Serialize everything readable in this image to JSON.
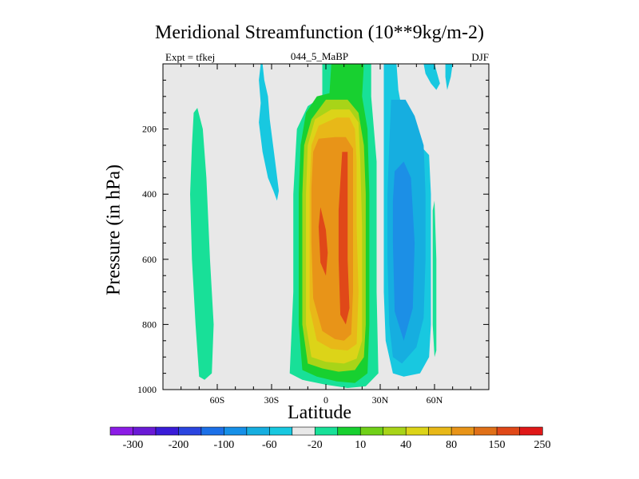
{
  "title": "Meridional Streamfunction (10**9kg/m-2)",
  "subtitle_left": "Expt = tfkej",
  "subtitle_center": "044_5_MaBP",
  "subtitle_right": "DJF",
  "chart_data": {
    "type": "contour",
    "title": "Meridional Streamfunction (10**9kg/m-2)",
    "xlabel": "Latitude",
    "ylabel": "Pressure (in hPa)",
    "x_ticks": [
      {
        "value": -60,
        "label": "60S"
      },
      {
        "value": -30,
        "label": "30S"
      },
      {
        "value": 0,
        "label": "0"
      },
      {
        "value": 30,
        "label": "30N"
      },
      {
        "value": 60,
        "label": "60N"
      }
    ],
    "xlim": [
      -90,
      90
    ],
    "y_ticks": [
      {
        "value": 200,
        "label": "200"
      },
      {
        "value": 400,
        "label": "400"
      },
      {
        "value": 600,
        "label": "600"
      },
      {
        "value": 800,
        "label": "800"
      },
      {
        "value": 1000,
        "label": "1000"
      }
    ],
    "ylim": [
      0,
      1000
    ],
    "y_inverted": true,
    "background_color": "#e8e8e8",
    "colorbar": {
      "labels": [
        "-300",
        "-200",
        "-100",
        "-60",
        "-20",
        "10",
        "40",
        "80",
        "150",
        "250"
      ],
      "colors": [
        "#8c1ce6",
        "#6a1ad6",
        "#3a1cd8",
        "#2a45e0",
        "#1c70e8",
        "#1690e8",
        "#16aee0",
        "#18c8e0",
        "#e8e8e8",
        "#18e098",
        "#18d030",
        "#70d018",
        "#a8d418",
        "#dcd418",
        "#e8b818",
        "#e89418",
        "#e07018",
        "#e04818",
        "#e01818"
      ]
    },
    "regions": [
      {
        "name": "south-positive-cell",
        "level": 10,
        "points": [
          [
            -71,
            135
          ],
          [
            -68,
            200
          ],
          [
            -66,
            350
          ],
          [
            -64,
            600
          ],
          [
            -62,
            800
          ],
          [
            -63,
            950
          ],
          [
            -67,
            970
          ],
          [
            -70,
            960
          ],
          [
            -72,
            800
          ],
          [
            -74,
            600
          ],
          [
            -75,
            400
          ],
          [
            -74,
            250
          ],
          [
            -73,
            150
          ]
        ]
      },
      {
        "name": "south-strat-negative",
        "level": -20,
        "points": [
          [
            -37,
            50
          ],
          [
            -36,
            0
          ],
          [
            -35,
            0
          ],
          [
            -34,
            50
          ],
          [
            -32,
            100
          ],
          [
            -31,
            170
          ],
          [
            -28,
            300
          ],
          [
            -26,
            390
          ],
          [
            -27,
            420
          ],
          [
            -29,
            390
          ],
          [
            -32,
            350
          ],
          [
            -35,
            270
          ],
          [
            -37,
            180
          ],
          [
            -36,
            120
          ]
        ]
      },
      {
        "name": "main-cell-10",
        "level": 10,
        "points": [
          [
            -2,
            0
          ],
          [
            25,
            0
          ],
          [
            25,
            100
          ],
          [
            28,
            300
          ],
          [
            28,
            700
          ],
          [
            29,
            950
          ],
          [
            22,
            990
          ],
          [
            12,
            995
          ],
          [
            0,
            985
          ],
          [
            -13,
            970
          ],
          [
            -20,
            950
          ],
          [
            -18,
            700
          ],
          [
            -18,
            400
          ],
          [
            -16,
            200
          ],
          [
            -10,
            130
          ],
          [
            -2,
            100
          ]
        ]
      },
      {
        "name": "main-cell-40",
        "level": 40,
        "points": [
          [
            3,
            0
          ],
          [
            21,
            0
          ],
          [
            20,
            100
          ],
          [
            23,
            200
          ],
          [
            24,
            400
          ],
          [
            24,
            600
          ],
          [
            24,
            800
          ],
          [
            23,
            950
          ],
          [
            16,
            980
          ],
          [
            6,
            975
          ],
          [
            -5,
            960
          ],
          [
            -13,
            940
          ],
          [
            -15,
            800
          ],
          [
            -15,
            600
          ],
          [
            -15,
            400
          ],
          [
            -14,
            250
          ],
          [
            -11,
            150
          ],
          [
            -5,
            100
          ],
          [
            2,
            90
          ]
        ]
      },
      {
        "name": "main-cell-80",
        "level": 80,
        "points": [
          [
            0,
            110
          ],
          [
            12,
            110
          ],
          [
            18,
            150
          ],
          [
            21,
            250
          ],
          [
            22,
            400
          ],
          [
            22,
            600
          ],
          [
            22,
            800
          ],
          [
            21,
            900
          ],
          [
            16,
            940
          ],
          [
            7,
            945
          ],
          [
            -2,
            935
          ],
          [
            -10,
            920
          ],
          [
            -13,
            800
          ],
          [
            -13,
            600
          ],
          [
            -13,
            400
          ],
          [
            -12,
            250
          ],
          [
            -8,
            170
          ]
        ]
      },
      {
        "name": "main-cell-120",
        "level": 120,
        "points": [
          [
            3,
            140
          ],
          [
            13,
            140
          ],
          [
            18,
            180
          ],
          [
            19,
            300
          ],
          [
            20,
            500
          ],
          [
            20,
            700
          ],
          [
            20,
            850
          ],
          [
            17,
            905
          ],
          [
            10,
            920
          ],
          [
            0,
            915
          ],
          [
            -8,
            900
          ],
          [
            -11,
            800
          ],
          [
            -11,
            600
          ],
          [
            -11,
            400
          ],
          [
            -10,
            250
          ],
          [
            -6,
            170
          ]
        ]
      },
      {
        "name": "main-cell-150",
        "level": 150,
        "points": [
          [
            6,
            165
          ],
          [
            13,
            165
          ],
          [
            16,
            200
          ],
          [
            17,
            300
          ],
          [
            17,
            500
          ],
          [
            18,
            700
          ],
          [
            17,
            860
          ],
          [
            12,
            880
          ],
          [
            3,
            875
          ],
          [
            -5,
            850
          ],
          [
            -9,
            750
          ],
          [
            -9,
            550
          ],
          [
            -9,
            380
          ],
          [
            -8,
            250
          ],
          [
            -4,
            190
          ]
        ]
      },
      {
        "name": "main-cell-200",
        "level": 200,
        "points": [
          [
            -4,
            230
          ],
          [
            5,
            225
          ],
          [
            11,
            225
          ],
          [
            15,
            260
          ],
          [
            15,
            500
          ],
          [
            15,
            700
          ],
          [
            14,
            830
          ],
          [
            10,
            850
          ],
          [
            5,
            845
          ],
          [
            -2,
            820
          ],
          [
            -7,
            720
          ],
          [
            -8,
            550
          ],
          [
            -8,
            380
          ],
          [
            -7,
            270
          ]
        ]
      },
      {
        "name": "main-cell-250a",
        "level": 250,
        "points": [
          [
            -3,
            440
          ],
          [
            0,
            510
          ],
          [
            1,
            580
          ],
          [
            0,
            650
          ],
          [
            -3,
            610
          ],
          [
            -4,
            500
          ]
        ]
      },
      {
        "name": "main-cell-250b",
        "level": 250,
        "points": [
          [
            9,
            270
          ],
          [
            12,
            270
          ],
          [
            12,
            430
          ],
          [
            12,
            600
          ],
          [
            13,
            750
          ],
          [
            11,
            800
          ],
          [
            8,
            770
          ],
          [
            7,
            600
          ],
          [
            7,
            450
          ]
        ]
      },
      {
        "name": "north-cell-20",
        "level": -20,
        "points": [
          [
            32,
            0
          ],
          [
            39,
            0
          ],
          [
            40,
            80
          ],
          [
            44,
            200
          ],
          [
            52,
            250
          ],
          [
            57,
            280
          ],
          [
            58,
            400
          ],
          [
            58,
            600
          ],
          [
            58,
            800
          ],
          [
            57,
            900
          ],
          [
            52,
            950
          ],
          [
            43,
            960
          ],
          [
            37,
            950
          ],
          [
            33,
            850
          ],
          [
            32,
            700
          ],
          [
            32,
            500
          ],
          [
            32,
            300
          ],
          [
            32,
            150
          ]
        ]
      },
      {
        "name": "north-cell-60",
        "level": -60,
        "points": [
          [
            36,
            110
          ],
          [
            44,
            110
          ],
          [
            49,
            160
          ],
          [
            54,
            250
          ],
          [
            55,
            400
          ],
          [
            55,
            600
          ],
          [
            54,
            780
          ],
          [
            50,
            870
          ],
          [
            42,
            920
          ],
          [
            37,
            900
          ],
          [
            35,
            800
          ],
          [
            34,
            600
          ],
          [
            34,
            400
          ],
          [
            35,
            250
          ]
        ]
      },
      {
        "name": "north-cell-100",
        "level": -100,
        "points": [
          [
            38,
            330
          ],
          [
            43,
            300
          ],
          [
            47,
            350
          ],
          [
            49,
            550
          ],
          [
            48,
            750
          ],
          [
            43,
            850
          ],
          [
            38,
            760
          ],
          [
            37,
            550
          ],
          [
            37,
            420
          ]
        ]
      },
      {
        "name": "north-strat-a",
        "level": -20,
        "points": [
          [
            54,
            0
          ],
          [
            60,
            0
          ],
          [
            62,
            40
          ],
          [
            63,
            60
          ],
          [
            61,
            80
          ],
          [
            58,
            60
          ],
          [
            55,
            30
          ]
        ]
      },
      {
        "name": "north-strat-b",
        "level": -20,
        "points": [
          [
            66,
            0
          ],
          [
            70,
            0
          ],
          [
            69,
            40
          ],
          [
            67,
            80
          ],
          [
            66,
            40
          ]
        ]
      },
      {
        "name": "north-positive",
        "level": 10,
        "points": [
          [
            60,
            420
          ],
          [
            61,
            600
          ],
          [
            61,
            800
          ],
          [
            61,
            880
          ],
          [
            60,
            900
          ],
          [
            59,
            800
          ],
          [
            59,
            600
          ],
          [
            59,
            450
          ]
        ]
      }
    ]
  }
}
